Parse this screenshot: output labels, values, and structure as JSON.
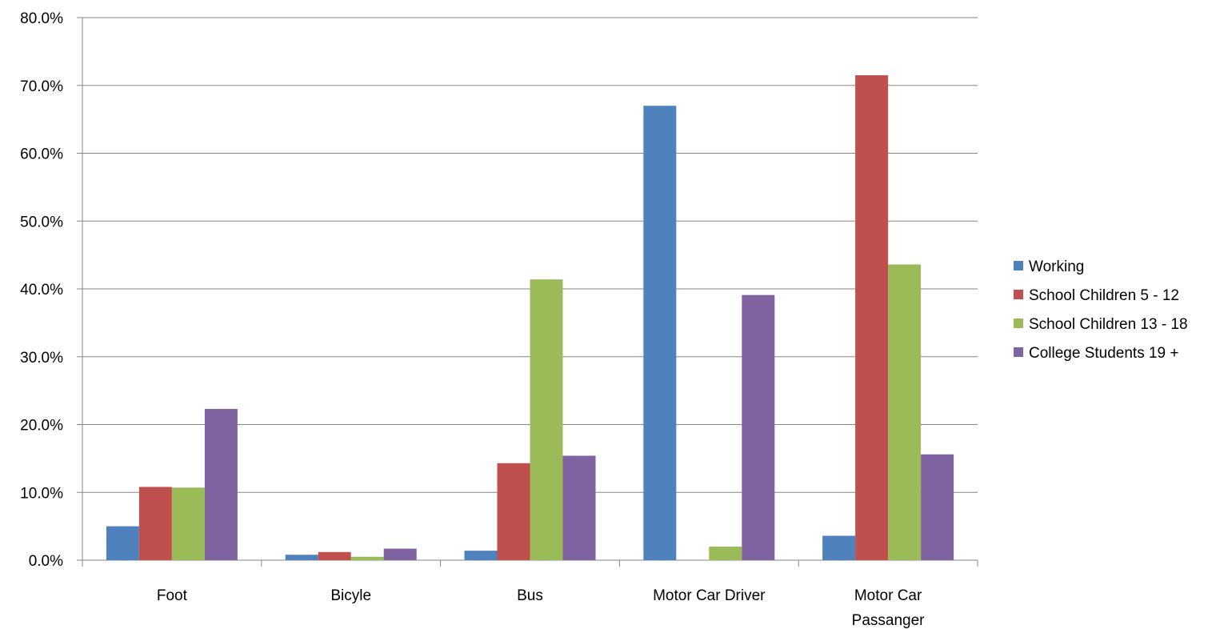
{
  "chart_data": {
    "type": "bar",
    "title": "",
    "xlabel": "",
    "ylabel": "",
    "categories": [
      "Foot",
      "Bicyle",
      "Bus",
      "Motor Car Driver",
      "Motor Car Passanger"
    ],
    "series": [
      {
        "name": "Working",
        "color": "#4f81bd",
        "values": [
          5.0,
          0.8,
          1.4,
          67.0,
          3.6
        ]
      },
      {
        "name": "School Children 5 - 12",
        "color": "#c0504d",
        "values": [
          10.8,
          1.2,
          14.3,
          0.0,
          71.5
        ]
      },
      {
        "name": "School Children 13 - 18",
        "color": "#9bbb59",
        "values": [
          10.7,
          0.5,
          41.4,
          2.0,
          43.6
        ]
      },
      {
        "name": "College Students 19 +",
        "color": "#8064a2",
        "values": [
          22.3,
          1.7,
          15.4,
          39.1,
          15.6
        ]
      }
    ],
    "ylim": [
      0,
      80
    ],
    "y_ticks": [
      "0.0%",
      "10.0%",
      "20.0%",
      "30.0%",
      "40.0%",
      "50.0%",
      "60.0%",
      "70.0%",
      "80.0%"
    ],
    "y_unit": "%",
    "grid": true,
    "legend_position": "right"
  }
}
